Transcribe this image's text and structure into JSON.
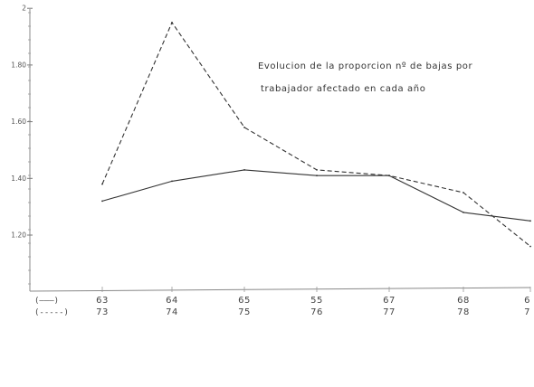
{
  "chart_data": {
    "type": "line",
    "title_lines": [
      "Evolucion de la proporcion nº de bajas por",
      "trabajador afectado en cada año"
    ],
    "xlabel": "",
    "ylabel": "",
    "ylim": [
      1.0,
      2.0
    ],
    "y_ticks": [
      {
        "value": 2.0,
        "label": "2"
      },
      {
        "value": 1.8,
        "label": "1.80"
      },
      {
        "value": 1.6,
        "label": "1.60"
      },
      {
        "value": 1.4,
        "label": "1.40"
      },
      {
        "value": 1.2,
        "label": "1.20"
      }
    ],
    "grid": false,
    "legend_position": "bottom-left",
    "series": [
      {
        "style": "solid",
        "legend_marker": "(———)",
        "categories": [
          "63",
          "64",
          "65",
          "55",
          "67",
          "68",
          "6"
        ],
        "values": [
          1.32,
          1.39,
          1.43,
          1.41,
          1.41,
          1.28,
          1.25
        ]
      },
      {
        "style": "dashed",
        "legend_marker": "(-----)",
        "categories": [
          "73",
          "74",
          "75",
          "76",
          "77",
          "78",
          "7"
        ],
        "values": [
          1.38,
          1.95,
          1.58,
          1.43,
          1.41,
          1.35,
          1.16
        ]
      }
    ]
  }
}
